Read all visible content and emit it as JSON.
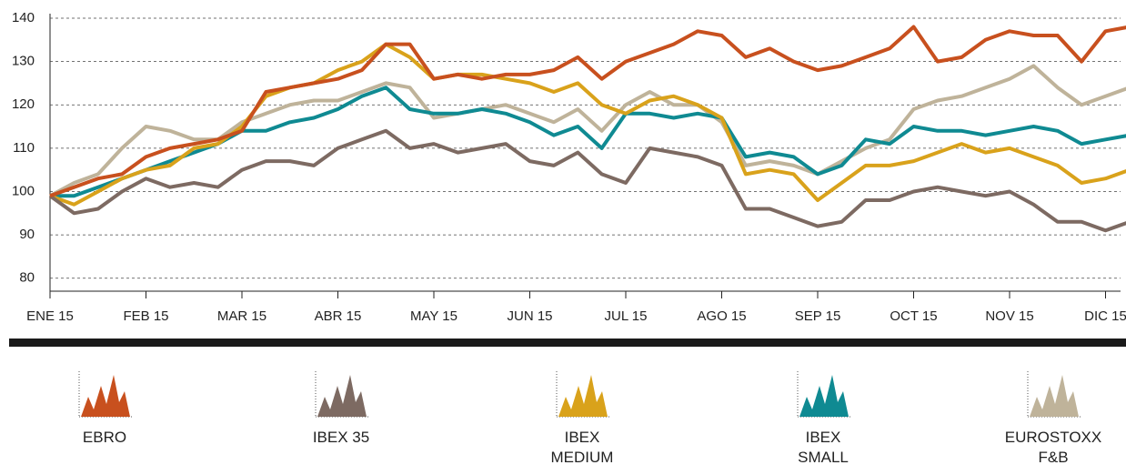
{
  "chart_data": {
    "type": "line",
    "x": [
      0,
      0.25,
      0.5,
      0.75,
      1,
      1.25,
      1.5,
      1.75,
      2,
      2.25,
      2.5,
      2.75,
      3,
      3.25,
      3.5,
      3.75,
      4,
      4.25,
      4.5,
      4.75,
      5,
      5.25,
      5.5,
      5.75,
      6,
      6.25,
      6.5,
      6.75,
      7,
      7.25,
      7.5,
      7.75,
      8,
      8.25,
      8.5,
      8.75,
      9,
      9.25,
      9.5,
      9.75,
      10,
      10.25,
      10.5,
      10.75,
      11,
      11.25
    ],
    "xlim": [
      0,
      11.17
    ],
    "xticks": [
      {
        "value": 0,
        "label": "ENE 15"
      },
      {
        "value": 1,
        "label": "FEB 15"
      },
      {
        "value": 2,
        "label": "MAR 15"
      },
      {
        "value": 3,
        "label": "ABR 15"
      },
      {
        "value": 4,
        "label": "MAY 15"
      },
      {
        "value": 5,
        "label": "JUN 15"
      },
      {
        "value": 6,
        "label": "JUL 15"
      },
      {
        "value": 7,
        "label": "AGO 15"
      },
      {
        "value": 8,
        "label": "SEP 15"
      },
      {
        "value": 9,
        "label": "OCT 15"
      },
      {
        "value": 10,
        "label": "NOV 15"
      },
      {
        "value": 11,
        "label": "DIC 15"
      }
    ],
    "ylim": [
      77,
      140
    ],
    "yticks": [
      80,
      90,
      100,
      110,
      120,
      130,
      140
    ],
    "grid": true,
    "series": [
      {
        "name": "EBRO",
        "color": "#c8501e",
        "values": [
          99,
          101,
          103,
          104,
          108,
          110,
          111,
          112,
          114,
          123,
          124,
          125,
          126,
          128,
          134,
          134,
          126,
          127,
          126,
          127,
          127,
          128,
          131,
          126,
          130,
          132,
          134,
          137,
          136,
          131,
          133,
          130,
          128,
          129,
          131,
          133,
          138,
          130,
          131,
          135,
          137,
          136,
          136,
          130,
          137,
          138
        ]
      },
      {
        "name": "IBEX 35",
        "color": "#7d6a62",
        "values": [
          99,
          95,
          96,
          100,
          103,
          101,
          102,
          101,
          105,
          107,
          107,
          106,
          110,
          112,
          114,
          110,
          111,
          109,
          110,
          111,
          107,
          106,
          109,
          104,
          102,
          110,
          109,
          108,
          106,
          96,
          96,
          94,
          92,
          93,
          98,
          98,
          100,
          101,
          100,
          99,
          100,
          97,
          93,
          93,
          91,
          93
        ]
      },
      {
        "name": "IBEX MEDIUM",
        "color": "#d9a21b",
        "values": [
          99,
          97,
          100,
          103,
          105,
          106,
          110,
          111,
          115,
          122,
          124,
          125,
          128,
          130,
          134,
          131,
          126,
          127,
          127,
          126,
          125,
          123,
          125,
          120,
          118,
          121,
          122,
          120,
          117,
          104,
          105,
          104,
          98,
          102,
          106,
          106,
          107,
          109,
          111,
          109,
          110,
          108,
          106,
          102,
          103,
          105
        ]
      },
      {
        "name": "IBEX SMALL",
        "color": "#0f8a92",
        "values": [
          99,
          99,
          101,
          103,
          105,
          107,
          109,
          111,
          114,
          114,
          116,
          117,
          119,
          122,
          124,
          119,
          118,
          118,
          119,
          118,
          116,
          113,
          115,
          110,
          118,
          118,
          117,
          118,
          117,
          108,
          109,
          108,
          104,
          106,
          112,
          111,
          115,
          114,
          114,
          113,
          114,
          115,
          114,
          111,
          112,
          113
        ]
      },
      {
        "name": "EUROSTOXX F&B",
        "color": "#bfb39a",
        "values": [
          99,
          102,
          104,
          110,
          115,
          114,
          112,
          112,
          116,
          118,
          120,
          121,
          121,
          123,
          125,
          124,
          117,
          118,
          119,
          120,
          118,
          116,
          119,
          114,
          120,
          123,
          120,
          120,
          116,
          106,
          107,
          106,
          104,
          107,
          110,
          112,
          119,
          121,
          122,
          124,
          126,
          129,
          124,
          120,
          122,
          124
        ]
      }
    ]
  }
}
